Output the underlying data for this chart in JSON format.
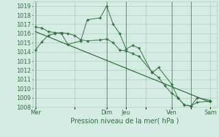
{
  "background_color": "#d4ece4",
  "grid_color": "#aaccbb",
  "line_color": "#2d6e3a",
  "marker_color": "#2d6e3a",
  "xlabel": "Pression niveau de la mer( hPa )",
  "ylim": [
    1008,
    1019.5
  ],
  "yticks": [
    1008,
    1009,
    1010,
    1011,
    1012,
    1013,
    1014,
    1015,
    1016,
    1017,
    1018,
    1019
  ],
  "xtick_labels": [
    "Mer",
    "",
    "Dim",
    "Jeu",
    "",
    "Ven",
    "",
    "Sam"
  ],
  "xtick_positions": [
    0,
    3.0,
    5.5,
    7.0,
    8.5,
    10.5,
    12.0,
    13.5
  ],
  "series1_x": [
    0.0,
    0.5,
    1.0,
    1.5,
    2.0,
    2.5,
    3.0,
    3.5,
    4.0,
    5.0,
    5.5,
    6.0,
    6.5,
    7.0,
    7.5,
    8.0,
    9.0,
    9.5,
    10.0,
    10.5,
    11.0,
    11.5,
    12.0,
    12.5,
    13.5
  ],
  "series1_y": [
    1014.2,
    1015.1,
    1015.8,
    1016.0,
    1016.1,
    1016.0,
    1015.8,
    1015.3,
    1015.2,
    1015.3,
    1015.4,
    1015.0,
    1014.2,
    1014.1,
    1013.8,
    1013.5,
    1011.8,
    1011.2,
    1010.3,
    1009.5,
    1009.0,
    1008.2,
    1008.1,
    1008.5,
    1008.6
  ],
  "series2_x": [
    0.0,
    0.5,
    1.0,
    1.5,
    2.0,
    2.5,
    3.5,
    4.0,
    5.0,
    5.5,
    6.0,
    6.5,
    7.0,
    7.5,
    8.0,
    9.0,
    9.5,
    10.5,
    11.0,
    11.5,
    12.0,
    12.5,
    13.5
  ],
  "series2_y": [
    1016.7,
    1016.6,
    1016.2,
    1016.1,
    1016.0,
    1014.8,
    1015.2,
    1017.5,
    1017.7,
    1019.0,
    1017.0,
    1016.0,
    1014.3,
    1014.7,
    1014.4,
    1011.7,
    1012.3,
    1010.5,
    1009.0,
    1008.2,
    1008.1,
    1009.0,
    1008.7
  ],
  "series3_x": [
    0.0,
    13.5
  ],
  "series3_y": [
    1016.2,
    1008.5
  ],
  "vert_lines_x": [
    0.0,
    5.5,
    7.0,
    10.5,
    12.0
  ],
  "font_size_labels": 6.0,
  "font_size_xlabel": 7.0,
  "font_color": "#2d6e3a"
}
